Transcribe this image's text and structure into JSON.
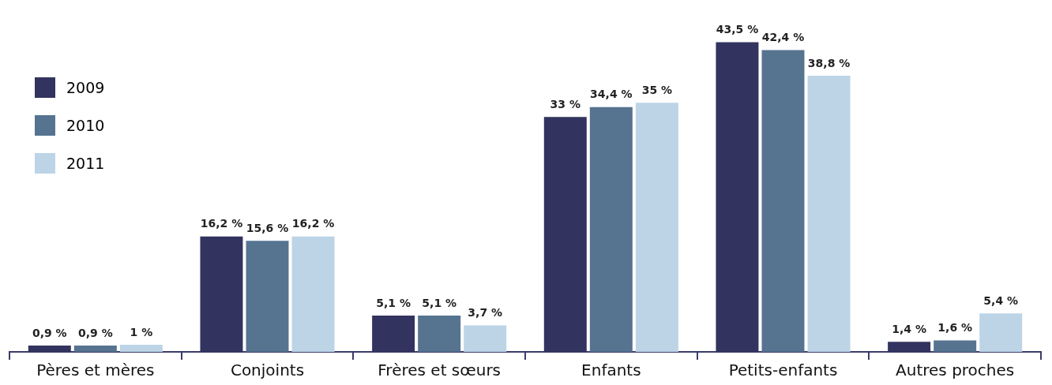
{
  "chart_data": {
    "type": "bar",
    "categories": [
      "Pères et mères",
      "Conjoints",
      "Frères et sœurs",
      "Enfants",
      "Petits-enfants",
      "Autres proches"
    ],
    "series": [
      {
        "name": "2009",
        "color": "#33335f",
        "values": [
          0.9,
          16.2,
          5.1,
          33,
          43.5,
          1.4
        ],
        "value_labels": [
          "0,9 %",
          "16,2 %",
          "5,1 %",
          "33 %",
          "43,5 %",
          "1,4 %"
        ]
      },
      {
        "name": "2010",
        "color": "#567390",
        "values": [
          0.9,
          15.6,
          5.1,
          34.4,
          42.4,
          1.6
        ],
        "value_labels": [
          "0,9 %",
          "15,6 %",
          "5,1 %",
          "34,4 %",
          "42,4 %",
          "1,6 %"
        ]
      },
      {
        "name": "2011",
        "color": "#bcd4e6",
        "values": [
          1,
          16.2,
          3.7,
          35,
          38.8,
          5.4
        ],
        "value_labels": [
          "1 %",
          "16,2 %",
          "3,7 %",
          "35 %",
          "38,8 %",
          "5,4 %"
        ]
      }
    ],
    "legend": "top left",
    "grid": false
  }
}
